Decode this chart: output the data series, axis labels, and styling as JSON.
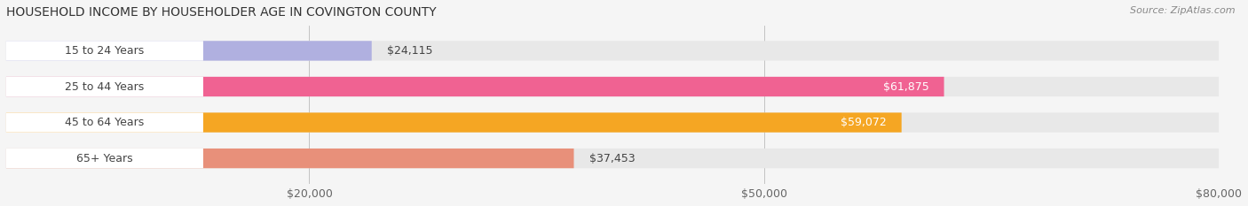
{
  "title": "HOUSEHOLD INCOME BY HOUSEHOLDER AGE IN COVINGTON COUNTY",
  "source": "Source: ZipAtlas.com",
  "categories": [
    "15 to 24 Years",
    "25 to 44 Years",
    "45 to 64 Years",
    "65+ Years"
  ],
  "values": [
    24115,
    61875,
    59072,
    37453
  ],
  "value_labels": [
    "$24,115",
    "$61,875",
    "$59,072",
    "$37,453"
  ],
  "bar_colors": [
    "#b0b0e0",
    "#f06292",
    "#f5a623",
    "#e8907a"
  ],
  "bar_bg_color": "#e8e8e8",
  "label_bg_color": "#ffffff",
  "background_color": "#f5f5f5",
  "xmin": 0,
  "xmax": 80000,
  "xticks": [
    20000,
    50000,
    80000
  ],
  "xticklabels": [
    "$20,000",
    "$50,000",
    "$80,000"
  ],
  "title_fontsize": 10,
  "label_fontsize": 9,
  "value_fontsize": 9,
  "source_fontsize": 8
}
